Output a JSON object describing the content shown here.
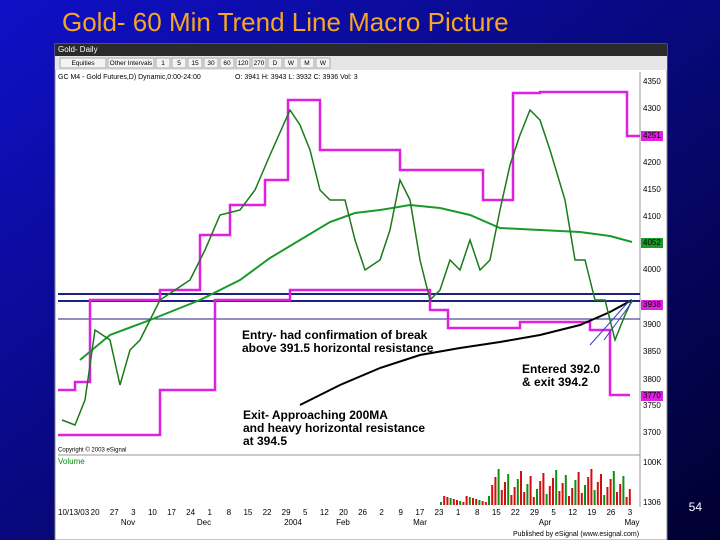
{
  "slide": {
    "title": "Gold- 60 Min Trend Line Macro Picture",
    "page_number": "54"
  },
  "window": {
    "tab": "Gold- Daily",
    "toolbar": [
      "Equities",
      "Other Intervals",
      "1",
      "5",
      "15",
      "30",
      "60",
      "120",
      "270",
      "D",
      "W",
      "M",
      "W"
    ],
    "header": "GC M4 - Gold Futures,D) Dynamic,0:00-24:00",
    "ohlc": "O: 3941   H: 3943   L: 3932   C: 3936   Vol: 3",
    "copyright": "Copyright © 2003 eSignal",
    "volume_label": "Volume",
    "publisher": "Published by eSignal (www.esignal.com)"
  },
  "price_axis": {
    "labels": [
      "4350",
      "4300",
      "4200",
      "4150",
      "4100",
      "4000",
      "3900",
      "3850",
      "3800",
      "3750",
      "3700"
    ],
    "boxes": [
      "4251",
      "4052",
      "3938",
      "3770"
    ]
  },
  "volume_axis": {
    "labels": [
      "100K",
      "1306"
    ]
  },
  "date_axis": {
    "days": [
      "10/13/03",
      "20",
      "27",
      "3",
      "10",
      "17",
      "24",
      "1",
      "8",
      "15",
      "22",
      "29",
      "5",
      "12",
      "20",
      "26",
      "2",
      "9",
      "17",
      "23",
      "1",
      "8",
      "15",
      "22",
      "29",
      "5",
      "12",
      "19",
      "26",
      "3"
    ],
    "months": [
      "Nov",
      "Dec",
      "2004",
      "Feb",
      "Mar",
      "Apr",
      "May"
    ]
  },
  "annotations": {
    "entry": [
      "Entry- had confirmation of break",
      "above 391.5 horizontal resistance"
    ],
    "entered": [
      "Entered 392.0",
      "& exit 394.2"
    ],
    "exit": [
      "Exit- Approaching 200MA",
      "and heavy horizontal resistance",
      "at 394.5"
    ]
  }
}
